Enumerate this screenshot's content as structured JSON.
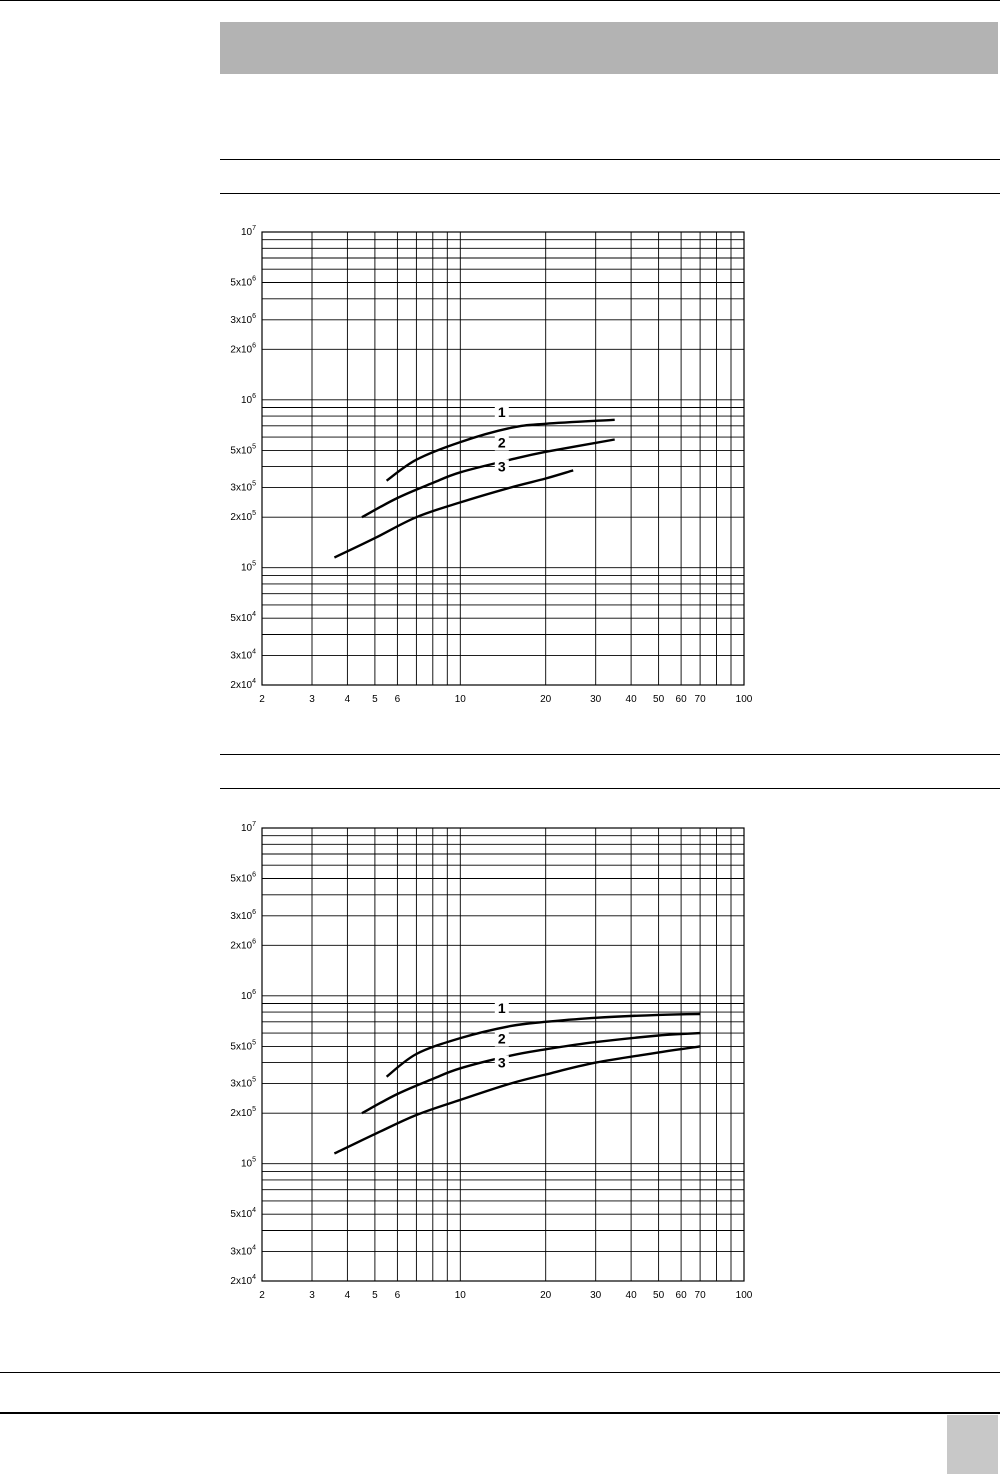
{
  "header": {
    "bar_color": "#b3b3b3"
  },
  "footer": {
    "corner_box_color": "#c8c8c8"
  },
  "chart_data": [
    {
      "type": "line",
      "xscale": "log",
      "yscale": "log",
      "xlim": [
        2,
        100
      ],
      "ylim": [
        20000,
        10000000
      ],
      "grid": true,
      "x_ticks": [
        {
          "v": 2,
          "label": "2"
        },
        {
          "v": 3,
          "label": "3"
        },
        {
          "v": 4,
          "label": "4"
        },
        {
          "v": 5,
          "label": "5"
        },
        {
          "v": 6,
          "label": "6"
        },
        {
          "v": 10,
          "label": "10"
        },
        {
          "v": 20,
          "label": "20"
        },
        {
          "v": 30,
          "label": "30"
        },
        {
          "v": 40,
          "label": "40"
        },
        {
          "v": 50,
          "label": "50"
        },
        {
          "v": 60,
          "label": "60"
        },
        {
          "v": 70,
          "label": "70"
        },
        {
          "v": 100,
          "label": "100"
        }
      ],
      "y_ticks": [
        {
          "v": 10000000,
          "mant": "10",
          "exp": "7"
        },
        {
          "v": 5000000,
          "mant": "5x10",
          "exp": "6"
        },
        {
          "v": 3000000,
          "mant": "3x10",
          "exp": "6"
        },
        {
          "v": 2000000,
          "mant": "2x10",
          "exp": "6"
        },
        {
          "v": 1000000,
          "mant": "10",
          "exp": "6"
        },
        {
          "v": 500000,
          "mant": "5x10",
          "exp": "5"
        },
        {
          "v": 300000,
          "mant": "3x10",
          "exp": "5"
        },
        {
          "v": 200000,
          "mant": "2x10",
          "exp": "5"
        },
        {
          "v": 100000,
          "mant": "10",
          "exp": "5"
        },
        {
          "v": 50000,
          "mant": "5x10",
          "exp": "4"
        },
        {
          "v": 30000,
          "mant": "3x10",
          "exp": "4"
        },
        {
          "v": 20000,
          "mant": "2x10",
          "exp": "4"
        }
      ],
      "series": [
        {
          "label": "1",
          "label_at": [
            14,
            790000
          ],
          "points": [
            [
              5.5,
              330000
            ],
            [
              7,
              440000
            ],
            [
              10,
              560000
            ],
            [
              15,
              680000
            ],
            [
              20,
              720000
            ],
            [
              35,
              760000
            ]
          ]
        },
        {
          "label": "2",
          "label_at": [
            14,
            520000
          ],
          "points": [
            [
              4.5,
              200000
            ],
            [
              6,
              260000
            ],
            [
              8,
              320000
            ],
            [
              10,
              370000
            ],
            [
              15,
              440000
            ],
            [
              20,
              490000
            ],
            [
              35,
              580000
            ]
          ]
        },
        {
          "label": "3",
          "label_at": [
            14,
            375000
          ],
          "points": [
            [
              3.6,
              115000
            ],
            [
              5,
              150000
            ],
            [
              7,
              200000
            ],
            [
              10,
              245000
            ],
            [
              15,
              300000
            ],
            [
              20,
              340000
            ],
            [
              25,
              380000
            ]
          ]
        }
      ]
    },
    {
      "type": "line",
      "xscale": "log",
      "yscale": "log",
      "xlim": [
        2,
        100
      ],
      "ylim": [
        20000,
        10000000
      ],
      "grid": true,
      "x_ticks": [
        {
          "v": 2,
          "label": "2"
        },
        {
          "v": 3,
          "label": "3"
        },
        {
          "v": 4,
          "label": "4"
        },
        {
          "v": 5,
          "label": "5"
        },
        {
          "v": 6,
          "label": "6"
        },
        {
          "v": 10,
          "label": "10"
        },
        {
          "v": 20,
          "label": "20"
        },
        {
          "v": 30,
          "label": "30"
        },
        {
          "v": 40,
          "label": "40"
        },
        {
          "v": 50,
          "label": "50"
        },
        {
          "v": 60,
          "label": "60"
        },
        {
          "v": 70,
          "label": "70"
        },
        {
          "v": 100,
          "label": "100"
        }
      ],
      "y_ticks": [
        {
          "v": 10000000,
          "mant": "10",
          "exp": "7"
        },
        {
          "v": 5000000,
          "mant": "5x10",
          "exp": "6"
        },
        {
          "v": 3000000,
          "mant": "3x10",
          "exp": "6"
        },
        {
          "v": 2000000,
          "mant": "2x10",
          "exp": "6"
        },
        {
          "v": 1000000,
          "mant": "10",
          "exp": "6"
        },
        {
          "v": 500000,
          "mant": "5x10",
          "exp": "5"
        },
        {
          "v": 300000,
          "mant": "3x10",
          "exp": "5"
        },
        {
          "v": 200000,
          "mant": "2x10",
          "exp": "5"
        },
        {
          "v": 100000,
          "mant": "10",
          "exp": "5"
        },
        {
          "v": 50000,
          "mant": "5x10",
          "exp": "4"
        },
        {
          "v": 30000,
          "mant": "3x10",
          "exp": "4"
        },
        {
          "v": 20000,
          "mant": "2x10",
          "exp": "4"
        }
      ],
      "series": [
        {
          "label": "1",
          "label_at": [
            14,
            790000
          ],
          "points": [
            [
              5.5,
              330000
            ],
            [
              7,
              450000
            ],
            [
              10,
              560000
            ],
            [
              15,
              660000
            ],
            [
              20,
              700000
            ],
            [
              30,
              740000
            ],
            [
              50,
              770000
            ],
            [
              70,
              780000
            ]
          ]
        },
        {
          "label": "2",
          "label_at": [
            14,
            520000
          ],
          "points": [
            [
              4.5,
              200000
            ],
            [
              6,
              260000
            ],
            [
              8,
              320000
            ],
            [
              10,
              370000
            ],
            [
              15,
              440000
            ],
            [
              20,
              480000
            ],
            [
              30,
              530000
            ],
            [
              50,
              580000
            ],
            [
              70,
              600000
            ]
          ]
        },
        {
          "label": "3",
          "label_at": [
            14,
            375000
          ],
          "points": [
            [
              3.6,
              115000
            ],
            [
              5,
              150000
            ],
            [
              7,
              195000
            ],
            [
              10,
              240000
            ],
            [
              15,
              300000
            ],
            [
              20,
              340000
            ],
            [
              30,
              400000
            ],
            [
              50,
              460000
            ],
            [
              70,
              500000
            ]
          ]
        }
      ]
    }
  ]
}
